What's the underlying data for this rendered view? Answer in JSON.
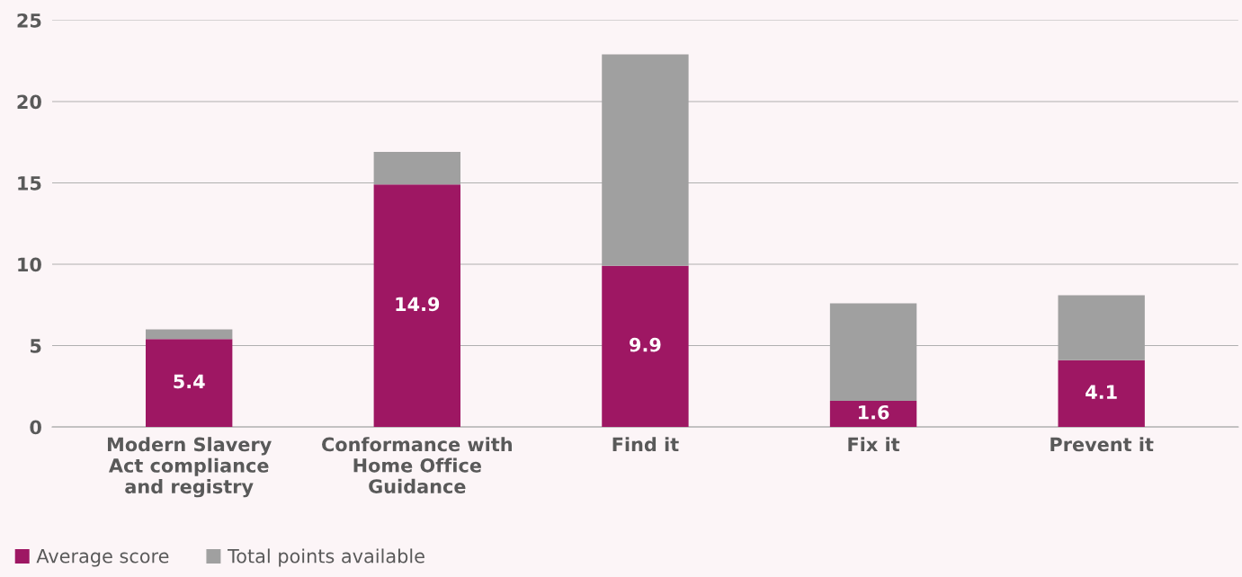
{
  "chart_data": {
    "type": "bar",
    "stacked": true,
    "categories": [
      "Modern Slavery\nAct compliance\nand registry",
      "Conformance with\nHome Office\nGuidance",
      "Find it",
      "Fix it",
      "Prevent it"
    ],
    "series": [
      {
        "name": "Average score",
        "color": "#9e1763",
        "values": [
          5.4,
          14.9,
          9.9,
          1.6,
          4.1
        ],
        "value_labels": [
          "5.4",
          "14.9",
          "9.9",
          "1.6",
          "4.1"
        ]
      },
      {
        "name": "Total points available",
        "color": "#a0a0a0",
        "values": [
          0.6,
          2.0,
          13.0,
          6.0,
          4.0
        ]
      }
    ],
    "ylim": [
      0,
      25
    ],
    "yticks": [
      0,
      5,
      10,
      15,
      20,
      25
    ],
    "grid": "y",
    "legend": "bottom left"
  }
}
